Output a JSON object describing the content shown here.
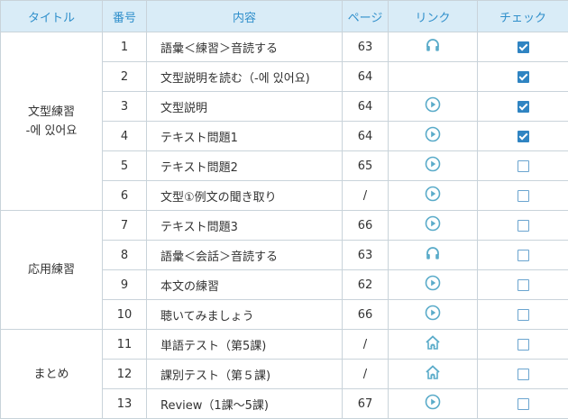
{
  "headers": [
    "タイトル",
    "番号",
    "内容",
    "ページ",
    "リンク",
    "チェック"
  ],
  "groups": [
    {
      "title_lines": [
        "文型練習",
        "-에 있어요"
      ]
    },
    {
      "title_lines": [
        "応用練習"
      ]
    },
    {
      "title_lines": [
        "まとめ"
      ]
    }
  ],
  "rows": [
    {
      "num": "1",
      "content": "語彙＜練習＞音読する",
      "page": "63",
      "icon": "headphones-icon",
      "checked": true
    },
    {
      "num": "2",
      "content": "文型説明を読む（-에 있어요)",
      "page": "64",
      "icon": "",
      "checked": true
    },
    {
      "num": "3",
      "content": "文型説明",
      "page": "64",
      "icon": "play-icon",
      "checked": true
    },
    {
      "num": "4",
      "content": "テキスト問題1",
      "page": "64",
      "icon": "play-icon",
      "checked": true
    },
    {
      "num": "5",
      "content": "テキスト問題2",
      "page": "65",
      "icon": "play-icon",
      "checked": false
    },
    {
      "num": "6",
      "content": "文型①例文の聞き取り",
      "page": "/",
      "icon": "play-icon",
      "checked": false
    },
    {
      "num": "7",
      "content": "テキスト問題3",
      "page": "66",
      "icon": "play-icon",
      "checked": false
    },
    {
      "num": "8",
      "content": "語彙＜会話＞音読する",
      "page": "63",
      "icon": "headphones-icon",
      "checked": false
    },
    {
      "num": "9",
      "content": "本文の練習",
      "page": "62",
      "icon": "play-icon",
      "checked": false
    },
    {
      "num": "10",
      "content": "聴いてみましょう",
      "page": "66",
      "icon": "play-icon",
      "checked": false
    },
    {
      "num": "11",
      "content": "単語テスト（第5課)",
      "page": "/",
      "icon": "home-icon",
      "checked": false
    },
    {
      "num": "12",
      "content": "課別テスト（第５課)",
      "page": "/",
      "icon": "home-icon",
      "checked": false
    },
    {
      "num": "13",
      "content": "Review（1課～5課)",
      "page": "67",
      "icon": "play-icon",
      "checked": false
    }
  ],
  "colors": {
    "header_bg": "#d9ecf7",
    "header_text": "#2f8fcb",
    "icon": "#5aabc9",
    "check": "#2f84c2"
  }
}
